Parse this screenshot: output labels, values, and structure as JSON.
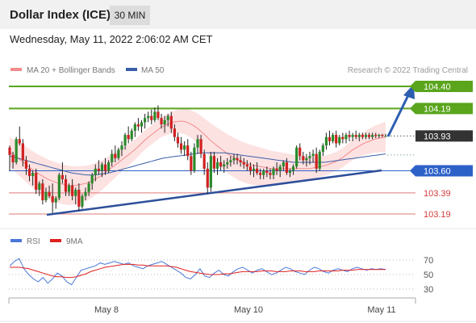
{
  "header": {
    "title": "Dollar Index (ICE)",
    "timeframe": "30 MIN",
    "datetime": "Wednesday, May 11, 2022 2:06:02 AM CET"
  },
  "chart_data": {
    "type": "candlestick",
    "legend": [
      {
        "name": "MA 20 + Bollinger Bands",
        "color": "#f28c8c"
      },
      {
        "name": "MA 50",
        "color": "#3a5fa8"
      }
    ],
    "credit": "Research © 2022 Trading Central",
    "price_axis": {
      "ylim": [
        102.85,
        104.55
      ]
    },
    "levels": [
      {
        "label": "104.40",
        "value": 104.4,
        "style": "resistance",
        "color": "#5aa51c"
      },
      {
        "label": "104.19",
        "value": 104.19,
        "style": "resistance",
        "color": "#5aa51c"
      },
      {
        "label": "103.93",
        "value": 103.93,
        "style": "last",
        "color": "#333333"
      },
      {
        "label": "103.60",
        "value": 103.6,
        "style": "pivot",
        "color": "#2d61c8"
      },
      {
        "label": "103.39",
        "value": 103.39,
        "style": "support",
        "color": "#e07a7a"
      },
      {
        "label": "103.19",
        "value": 103.19,
        "style": "support",
        "color": "#e07a7a"
      }
    ],
    "x_ticks": [
      "May 8",
      "May 10",
      "May 11"
    ],
    "candle_count": 115,
    "candles": [
      [
        103.82,
        103.84,
        103.6,
        103.75
      ],
      [
        103.75,
        103.78,
        103.62,
        103.68
      ],
      [
        103.68,
        103.92,
        103.66,
        103.9
      ],
      [
        103.9,
        104.02,
        103.84,
        103.86
      ],
      [
        103.86,
        103.9,
        103.64,
        103.7
      ],
      [
        103.7,
        103.74,
        103.56,
        103.62
      ],
      [
        103.62,
        103.66,
        103.5,
        103.55
      ],
      [
        103.55,
        103.6,
        103.46,
        103.58
      ],
      [
        103.58,
        103.62,
        103.38,
        103.42
      ],
      [
        103.42,
        103.5,
        103.36,
        103.48
      ],
      [
        103.48,
        103.52,
        103.28,
        103.32
      ],
      [
        103.32,
        103.44,
        103.3,
        103.4
      ],
      [
        103.4,
        103.46,
        103.34,
        103.36
      ],
      [
        103.36,
        103.48,
        103.2,
        103.3
      ],
      [
        103.3,
        103.36,
        103.24,
        103.34
      ],
      [
        103.34,
        103.58,
        103.32,
        103.56
      ],
      [
        103.56,
        103.68,
        103.48,
        103.52
      ],
      [
        103.52,
        103.56,
        103.36,
        103.4
      ],
      [
        103.4,
        103.48,
        103.36,
        103.46
      ],
      [
        103.46,
        103.52,
        103.32,
        103.36
      ],
      [
        103.36,
        103.44,
        103.28,
        103.42
      ],
      [
        103.42,
        103.48,
        103.22,
        103.26
      ],
      [
        103.26,
        103.38,
        103.24,
        103.36
      ],
      [
        103.36,
        103.44,
        103.32,
        103.4
      ],
      [
        103.4,
        103.5,
        103.36,
        103.48
      ],
      [
        103.48,
        103.58,
        103.42,
        103.56
      ],
      [
        103.56,
        103.66,
        103.5,
        103.62
      ],
      [
        103.62,
        103.7,
        103.56,
        103.6
      ],
      [
        103.6,
        103.68,
        103.54,
        103.66
      ],
      [
        103.66,
        103.72,
        103.56,
        103.6
      ],
      [
        103.6,
        103.7,
        103.58,
        103.68
      ],
      [
        103.68,
        103.8,
        103.64,
        103.76
      ],
      [
        103.76,
        103.84,
        103.68,
        103.72
      ],
      [
        103.72,
        103.82,
        103.7,
        103.8
      ],
      [
        103.8,
        103.88,
        103.74,
        103.84
      ],
      [
        103.84,
        103.96,
        103.8,
        103.94
      ],
      [
        103.94,
        104.02,
        103.86,
        103.9
      ],
      [
        103.9,
        104.0,
        103.88,
        103.98
      ],
      [
        103.98,
        104.06,
        103.92,
        104.04
      ],
      [
        104.04,
        104.1,
        103.98,
        104.02
      ],
      [
        104.02,
        104.08,
        103.96,
        104.06
      ],
      [
        104.06,
        104.14,
        104.0,
        104.1
      ],
      [
        104.1,
        104.16,
        104.06,
        104.12
      ],
      [
        104.12,
        104.18,
        104.04,
        104.08
      ],
      [
        104.08,
        104.2,
        104.06,
        104.16
      ],
      [
        104.16,
        104.22,
        104.08,
        104.1
      ],
      [
        104.1,
        104.14,
        104.0,
        104.04
      ],
      [
        104.04,
        104.12,
        103.96,
        104.08
      ],
      [
        104.08,
        104.14,
        104.02,
        104.12
      ],
      [
        104.12,
        104.16,
        103.96,
        104.0
      ],
      [
        104.0,
        104.04,
        103.88,
        103.92
      ],
      [
        103.92,
        103.96,
        103.82,
        103.86
      ],
      [
        103.86,
        103.92,
        103.76,
        103.8
      ],
      [
        103.8,
        103.88,
        103.74,
        103.84
      ],
      [
        103.84,
        103.9,
        103.7,
        103.74
      ],
      [
        103.74,
        103.78,
        103.56,
        103.6
      ],
      [
        103.6,
        103.86,
        103.58,
        103.82
      ],
      [
        103.82,
        103.94,
        103.76,
        103.9
      ],
      [
        103.9,
        103.94,
        103.72,
        103.76
      ],
      [
        103.76,
        103.8,
        103.56,
        103.62
      ],
      [
        103.62,
        103.68,
        103.38,
        103.44
      ],
      [
        103.44,
        103.78,
        103.4,
        103.74
      ],
      [
        103.74,
        103.78,
        103.58,
        103.62
      ],
      [
        103.62,
        103.72,
        103.56,
        103.68
      ],
      [
        103.68,
        103.74,
        103.6,
        103.64
      ],
      [
        103.64,
        103.7,
        103.58,
        103.66
      ],
      [
        103.66,
        103.72,
        103.62,
        103.68
      ],
      [
        103.68,
        103.74,
        103.64,
        103.7
      ],
      [
        103.7,
        103.76,
        103.66,
        103.72
      ],
      [
        103.72,
        103.76,
        103.66,
        103.7
      ],
      [
        103.7,
        103.74,
        103.64,
        103.68
      ],
      [
        103.68,
        103.72,
        103.62,
        103.66
      ],
      [
        103.66,
        103.7,
        103.6,
        103.64
      ],
      [
        103.64,
        103.68,
        103.56,
        103.6
      ],
      [
        103.6,
        103.66,
        103.54,
        103.62
      ],
      [
        103.62,
        103.68,
        103.56,
        103.58
      ],
      [
        103.58,
        103.62,
        103.52,
        103.56
      ],
      [
        103.56,
        103.62,
        103.52,
        103.6
      ],
      [
        103.6,
        103.64,
        103.54,
        103.58
      ],
      [
        103.58,
        103.62,
        103.52,
        103.56
      ],
      [
        103.56,
        103.64,
        103.52,
        103.62
      ],
      [
        103.62,
        103.68,
        103.56,
        103.6
      ],
      [
        103.6,
        103.66,
        103.54,
        103.64
      ],
      [
        103.64,
        103.7,
        103.6,
        103.68
      ],
      [
        103.68,
        103.72,
        103.56,
        103.58
      ],
      [
        103.58,
        103.62,
        103.54,
        103.6
      ],
      [
        103.6,
        103.66,
        103.56,
        103.64
      ],
      [
        103.64,
        103.84,
        103.62,
        103.82
      ],
      [
        103.82,
        103.86,
        103.7,
        103.74
      ],
      [
        103.74,
        103.78,
        103.66,
        103.7
      ],
      [
        103.7,
        103.76,
        103.64,
        103.72
      ],
      [
        103.72,
        103.78,
        103.66,
        103.74
      ],
      [
        103.74,
        103.8,
        103.68,
        103.76
      ],
      [
        103.76,
        103.82,
        103.58,
        103.62
      ],
      [
        103.62,
        103.8,
        103.6,
        103.78
      ],
      [
        103.78,
        103.86,
        103.74,
        103.84
      ],
      [
        103.84,
        103.96,
        103.8,
        103.92
      ],
      [
        103.92,
        103.98,
        103.84,
        103.88
      ],
      [
        103.88,
        103.96,
        103.86,
        103.94
      ],
      [
        103.94,
        103.98,
        103.82,
        103.86
      ],
      [
        103.86,
        103.94,
        103.84,
        103.92
      ],
      [
        103.92,
        103.96,
        103.86,
        103.9
      ],
      [
        103.9,
        103.96,
        103.86,
        103.94
      ],
      [
        103.94,
        103.98,
        103.88,
        103.92
      ],
      [
        103.92,
        103.96,
        103.88,
        103.94
      ],
      [
        103.94,
        103.98,
        103.9,
        103.92
      ],
      [
        103.92,
        103.96,
        103.88,
        103.94
      ],
      [
        103.94,
        103.96,
        103.9,
        103.92
      ],
      [
        103.92,
        103.96,
        103.9,
        103.94
      ],
      [
        103.94,
        103.96,
        103.9,
        103.92
      ],
      [
        103.92,
        103.96,
        103.9,
        103.94
      ],
      [
        103.94,
        103.96,
        103.91,
        103.93
      ],
      [
        103.93,
        103.95,
        103.91,
        103.94
      ],
      [
        103.94,
        103.95,
        103.92,
        103.93
      ],
      [
        103.93,
        103.95,
        103.92,
        103.93
      ]
    ],
    "ma20": [
      103.78,
      103.74,
      103.7,
      103.66,
      103.62,
      103.58,
      103.55,
      103.52,
      103.5,
      103.48,
      103.47,
      103.46,
      103.46,
      103.47,
      103.48,
      103.5,
      103.53,
      103.56,
      103.6,
      103.64,
      103.68,
      103.72,
      103.76,
      103.8,
      103.85,
      103.9,
      103.94,
      103.98,
      104.02,
      104.04,
      104.06,
      104.07,
      104.07,
      104.05,
      104.02,
      103.98,
      103.93,
      103.88,
      103.84,
      103.8,
      103.76,
      103.73,
      103.7,
      103.68,
      103.66,
      103.65,
      103.64,
      103.63,
      103.62,
      103.62,
      103.62,
      103.62,
      103.62,
      103.62,
      103.62,
      103.62,
      103.63,
      103.64,
      103.65,
      103.67,
      103.69,
      103.72,
      103.76,
      103.8,
      103.83,
      103.86,
      103.88,
      103.9,
      103.91,
      103.92
    ],
    "ma50": [
      103.74,
      103.72,
      103.7,
      103.68,
      103.66,
      103.64,
      103.62,
      103.6,
      103.58,
      103.57,
      103.56,
      103.56,
      103.57,
      103.58,
      103.6,
      103.62,
      103.64,
      103.66,
      103.68,
      103.7,
      103.72,
      103.73,
      103.74,
      103.75,
      103.76,
      103.77,
      103.77,
      103.77,
      103.77,
      103.76,
      103.75,
      103.74,
      103.73,
      103.72,
      103.71,
      103.7,
      103.69,
      103.68,
      103.68,
      103.68,
      103.68,
      103.68,
      103.69,
      103.7,
      103.71,
      103.72,
      103.73,
      103.74,
      103.75,
      103.76
    ],
    "rsi_panel": {
      "legend": [
        {
          "name": "RSI",
          "color": "#4a78d8"
        },
        {
          "name": "9MA",
          "color": "#e02020"
        }
      ],
      "levels": [
        "70",
        "50",
        "30"
      ],
      "ylim": [
        20,
        80
      ],
      "rsi": [
        62,
        68,
        72,
        58,
        50,
        44,
        40,
        46,
        38,
        44,
        52,
        48,
        40,
        36,
        46,
        56,
        58,
        60,
        62,
        66,
        64,
        66,
        68,
        66,
        64,
        66,
        62,
        60,
        58,
        62,
        64,
        66,
        68,
        64,
        60,
        56,
        52,
        46,
        44,
        50,
        58,
        48,
        46,
        52,
        56,
        50,
        48,
        54,
        58,
        60,
        56,
        52,
        56,
        58,
        54,
        50,
        52,
        56,
        60,
        58,
        54,
        52,
        50,
        56,
        60,
        58,
        54,
        52,
        56,
        58,
        56,
        54,
        58,
        60,
        58,
        56,
        58,
        57,
        58,
        57
      ],
      "ma9": [
        60,
        60,
        60,
        59,
        58,
        56,
        54,
        52,
        50,
        48,
        47,
        47,
        46,
        46,
        47,
        49,
        51,
        54,
        56,
        58,
        60,
        61,
        62,
        63,
        64,
        64,
        64,
        63,
        63,
        62,
        62,
        62,
        62,
        62,
        61,
        60,
        58,
        56,
        54,
        53,
        52,
        51,
        50,
        50,
        50,
        51,
        51,
        52,
        53,
        54,
        54,
        54,
        54,
        55,
        55,
        55,
        54,
        54,
        54,
        55,
        55,
        55,
        54,
        54,
        54,
        55,
        55,
        55,
        55,
        55,
        56,
        56,
        56,
        57,
        57,
        57,
        57,
        57,
        57,
        57
      ]
    }
  }
}
